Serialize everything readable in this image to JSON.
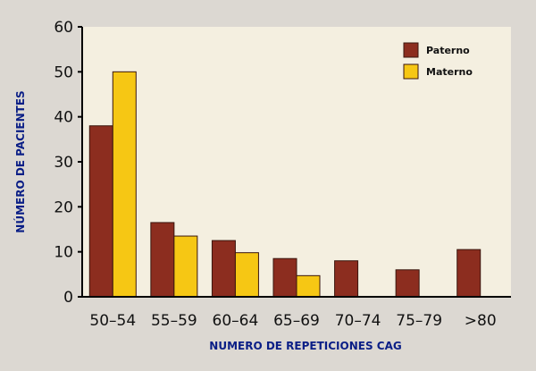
{
  "colors": {
    "paterno": "#8c2d1f",
    "materno": "#f6c714",
    "plot_background": "#f4efe0",
    "axis": "#000000",
    "axis_title": "#0a1e86"
  },
  "chart_data": {
    "type": "bar",
    "title": "",
    "xlabel": "NUMERO DE REPETICIONES CAG",
    "ylabel": "NÚMERO DE PACIENTES",
    "ylim": [
      0,
      60
    ],
    "yticks": [
      "0",
      "10",
      "20",
      "30",
      "40",
      "50",
      "60"
    ],
    "categories": [
      "50–54",
      "55–59",
      "60–64",
      "65–69",
      "70–74",
      "75–79",
      ">80"
    ],
    "series": [
      {
        "name": "Paterno",
        "values": [
          38,
          16.5,
          12.5,
          8.5,
          8,
          6,
          10.5
        ]
      },
      {
        "name": "Materno",
        "values": [
          50,
          13.5,
          9.8,
          4.7,
          0,
          0,
          0
        ]
      }
    ],
    "grid": false,
    "legend": "top-right"
  }
}
